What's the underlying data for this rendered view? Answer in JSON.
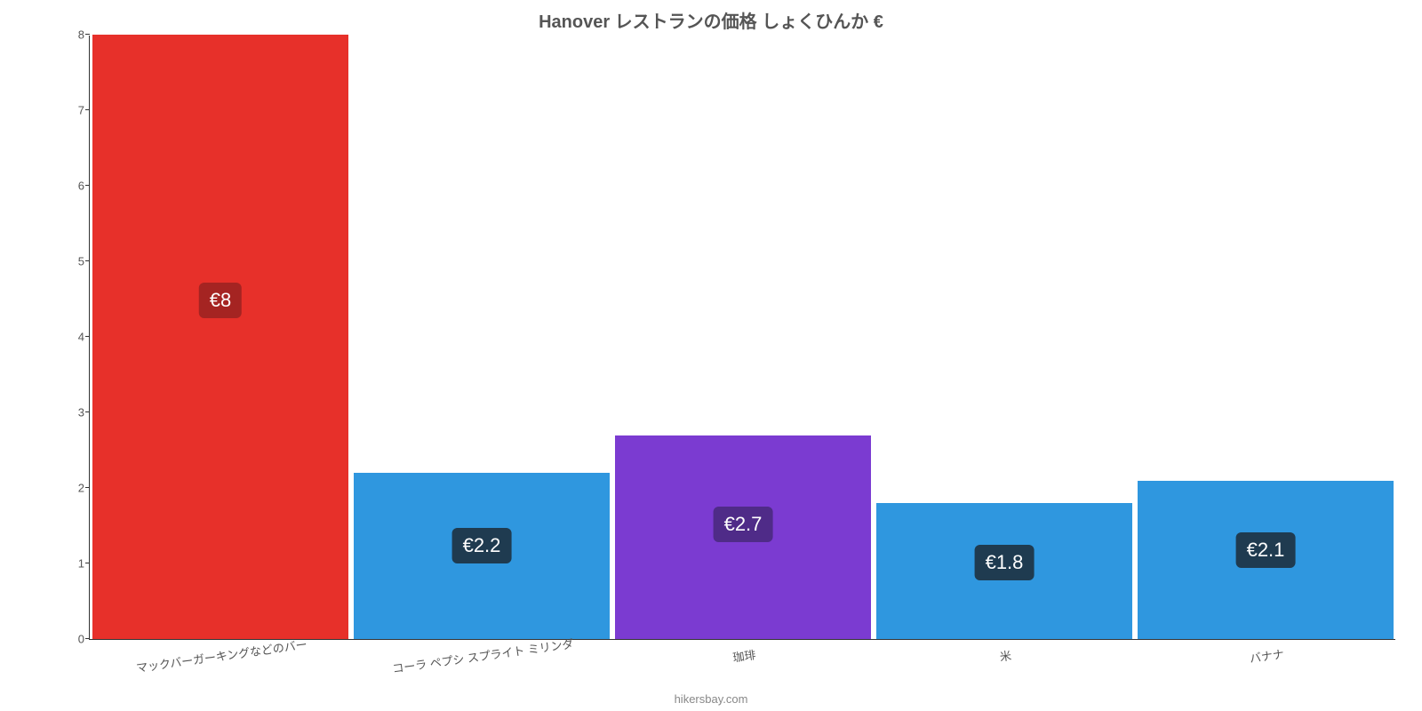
{
  "chart": {
    "type": "bar",
    "title": "Hanover レストランの価格 しょくひんか €",
    "title_fontsize": 20,
    "title_color": "#555555",
    "background_color": "#ffffff",
    "y_axis": {
      "min": 0,
      "max": 8,
      "tick_step": 1,
      "ticks": [
        "0",
        "1",
        "2",
        "3",
        "4",
        "5",
        "6",
        "7",
        "8"
      ],
      "tick_fontsize": 13,
      "tick_color": "#555555"
    },
    "x_axis": {
      "label_fontsize": 13,
      "label_color": "#555555",
      "label_rotation_deg": -8
    },
    "bars": [
      {
        "category": "マックバーガーキングなどのバー",
        "value": 8.0,
        "value_label": "€8",
        "fill": "#e7302a",
        "label_bg": "#a52422"
      },
      {
        "category": "コーラ ペプシ スプライト ミリンダ",
        "value": 2.2,
        "value_label": "€2.2",
        "fill": "#2f97df",
        "label_bg": "#1f3b50"
      },
      {
        "category": "珈琲",
        "value": 2.7,
        "value_label": "€2.7",
        "fill": "#7b3bd1",
        "label_bg": "#4f2b88"
      },
      {
        "category": "米",
        "value": 1.8,
        "value_label": "€1.8",
        "fill": "#2f97df",
        "label_bg": "#1f3b50"
      },
      {
        "category": "バナナ",
        "value": 2.1,
        "value_label": "€2.1",
        "fill": "#2f97df",
        "label_bg": "#1f3b50"
      }
    ],
    "bar_label_fontsize": 22,
    "bar_label_color": "#ffffff",
    "bar_width_ratio": 0.98,
    "credit": "hikersbay.com",
    "credit_fontsize": 13,
    "credit_color": "#888888"
  }
}
